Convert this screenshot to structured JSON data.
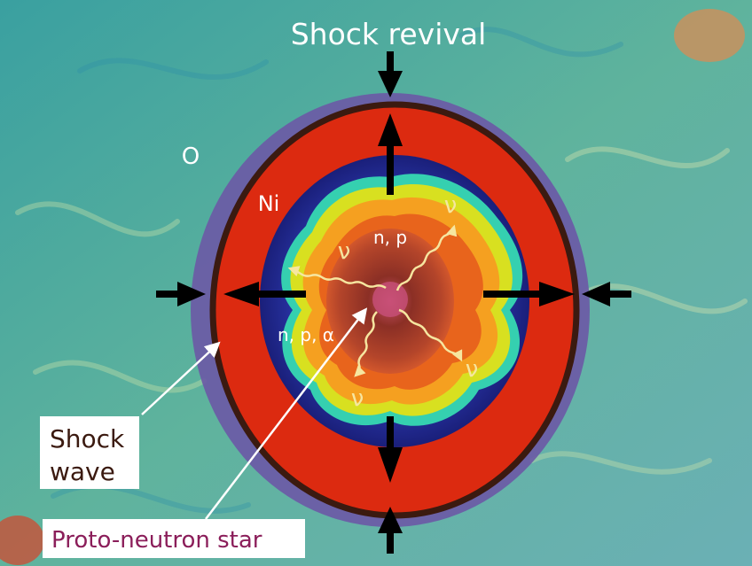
{
  "title": "Shock revival",
  "labels": {
    "oxygen": "O",
    "nickel": "Ni",
    "inner_np": "n, p",
    "outer_npa": "n, p, α",
    "nu_1": "ν",
    "nu_2": "ν",
    "nu_3": "ν",
    "nu_4": "ν"
  },
  "callouts": {
    "shock_wave_line1": "Shock",
    "shock_wave_line2": "wave",
    "proto_neutron_star": "Proto-neutron star"
  },
  "colors": {
    "background": "#4fa7a0",
    "envelope": "#6b5aa6",
    "shell": "#dc2a10",
    "shock_ring": "#3b1a10",
    "inner_disk": "#26298f",
    "turbulent": "#f5a020",
    "core": "#8b2f25",
    "neutrino_wave": "#f6e6a0",
    "proto_label": "#8b1e5a",
    "shock_label": "#3b1a10"
  }
}
